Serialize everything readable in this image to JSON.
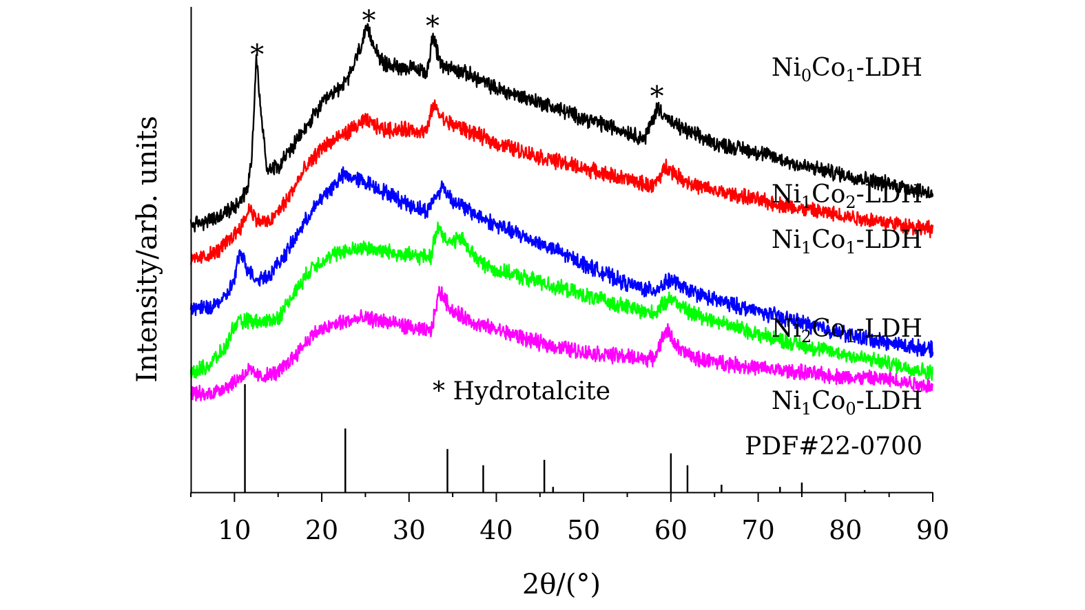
{
  "chart_data": {
    "type": "line",
    "xlabel": "2θ/(°)",
    "ylabel": "Intensity/arb. units",
    "xlim": [
      5,
      90
    ],
    "x_ticks": [
      10,
      20,
      30,
      40,
      50,
      60,
      70,
      80,
      90
    ],
    "y_ticks_shown": false,
    "grid": false,
    "legend": "none (series labels printed at right end of each trace)",
    "annotation": "* Hydrotalcite",
    "peak_marker": "*",
    "series": [
      {
        "name": "Ni0Co1-LDH",
        "name_parts": [
          [
            "Ni",
            ""
          ],
          [
            "0",
            "sub"
          ],
          [
            "Co",
            ""
          ],
          [
            "1",
            "sub"
          ],
          [
            "-LDH",
            ""
          ]
        ],
        "color": "#000000",
        "points": [
          [
            5,
            0.74
          ],
          [
            8,
            0.77
          ],
          [
            10,
            0.82
          ],
          [
            11.5,
            0.9
          ],
          [
            12,
            1.05
          ],
          [
            12.5,
            1.48
          ],
          [
            13,
            1.25
          ],
          [
            13.7,
            0.99
          ],
          [
            15,
            1.0
          ],
          [
            17,
            1.1
          ],
          [
            20,
            1.27
          ],
          [
            23,
            1.38
          ],
          [
            25.2,
            1.6
          ],
          [
            27,
            1.45
          ],
          [
            30,
            1.43
          ],
          [
            32,
            1.41
          ],
          [
            32.8,
            1.58
          ],
          [
            33.5,
            1.45
          ],
          [
            37,
            1.4
          ],
          [
            40,
            1.34
          ],
          [
            45,
            1.28
          ],
          [
            50,
            1.21
          ],
          [
            55,
            1.15
          ],
          [
            57,
            1.12
          ],
          [
            58.5,
            1.26
          ],
          [
            60,
            1.19
          ],
          [
            62,
            1.15
          ],
          [
            65,
            1.1
          ],
          [
            70,
            1.06
          ],
          [
            75,
            1.0
          ],
          [
            80,
            0.96
          ],
          [
            85,
            0.92
          ],
          [
            90,
            0.88
          ]
        ],
        "peak_stars_at_x": [
          12.6,
          25.4,
          32.7,
          58.4
        ]
      },
      {
        "name": "Ni1Co2-LDH",
        "name_parts": [
          [
            "Ni",
            ""
          ],
          [
            "1",
            "sub"
          ],
          [
            "Co",
            ""
          ],
          [
            "2",
            "sub"
          ],
          [
            "-LDH",
            ""
          ]
        ],
        "color": "#ff0000",
        "points": [
          [
            5,
            0.58
          ],
          [
            8,
            0.62
          ],
          [
            10,
            0.7
          ],
          [
            11,
            0.75
          ],
          [
            11.8,
            0.82
          ],
          [
            12.5,
            0.76
          ],
          [
            14,
            0.75
          ],
          [
            16,
            0.85
          ],
          [
            18,
            0.98
          ],
          [
            20,
            1.08
          ],
          [
            23,
            1.15
          ],
          [
            25,
            1.2
          ],
          [
            27,
            1.16
          ],
          [
            30,
            1.16
          ],
          [
            32,
            1.15
          ],
          [
            32.8,
            1.27
          ],
          [
            34,
            1.2
          ],
          [
            37,
            1.15
          ],
          [
            40,
            1.1
          ],
          [
            45,
            1.04
          ],
          [
            50,
            0.99
          ],
          [
            55,
            0.94
          ],
          [
            58,
            0.91
          ],
          [
            59.5,
            1.0
          ],
          [
            61,
            0.95
          ],
          [
            63,
            0.91
          ],
          [
            65,
            0.89
          ],
          [
            70,
            0.85
          ],
          [
            75,
            0.81
          ],
          [
            80,
            0.78
          ],
          [
            85,
            0.75
          ],
          [
            90,
            0.72
          ]
        ]
      },
      {
        "name": "Ni1Co1-LDH",
        "name_parts": [
          [
            "Ni",
            ""
          ],
          [
            "1",
            "sub"
          ],
          [
            "Co",
            ""
          ],
          [
            "1",
            "sub"
          ],
          [
            "-LDH",
            ""
          ]
        ],
        "color": "#0000ff",
        "points": [
          [
            5,
            0.38
          ],
          [
            7,
            0.37
          ],
          [
            9,
            0.42
          ],
          [
            10,
            0.5
          ],
          [
            10.6,
            0.62
          ],
          [
            11.5,
            0.55
          ],
          [
            12.5,
            0.5
          ],
          [
            14,
            0.52
          ],
          [
            16,
            0.62
          ],
          [
            18,
            0.75
          ],
          [
            20,
            0.86
          ],
          [
            22.5,
            0.96
          ],
          [
            25,
            0.93
          ],
          [
            28,
            0.87
          ],
          [
            30,
            0.83
          ],
          [
            32,
            0.8
          ],
          [
            33.8,
            0.91
          ],
          [
            35,
            0.85
          ],
          [
            37,
            0.8
          ],
          [
            40,
            0.74
          ],
          [
            45,
            0.66
          ],
          [
            50,
            0.57
          ],
          [
            55,
            0.48
          ],
          [
            58,
            0.45
          ],
          [
            60,
            0.5
          ],
          [
            61.5,
            0.46
          ],
          [
            65,
            0.41
          ],
          [
            70,
            0.36
          ],
          [
            75,
            0.31
          ],
          [
            80,
            0.26
          ],
          [
            85,
            0.22
          ],
          [
            90,
            0.19
          ]
        ]
      },
      {
        "name": "Ni2Co1-LDH",
        "name_parts": [
          [
            "Ni",
            ""
          ],
          [
            "2",
            "sub"
          ],
          [
            "Co",
            ""
          ],
          [
            "1",
            "sub"
          ],
          [
            "-LDH",
            ""
          ]
        ],
        "color": "#00ff00",
        "points": [
          [
            5,
            0.09
          ],
          [
            7,
            0.12
          ],
          [
            9,
            0.2
          ],
          [
            10,
            0.3
          ],
          [
            11.5,
            0.32
          ],
          [
            13,
            0.31
          ],
          [
            15,
            0.33
          ],
          [
            17,
            0.45
          ],
          [
            19,
            0.56
          ],
          [
            22,
            0.62
          ],
          [
            25,
            0.64
          ],
          [
            28,
            0.62
          ],
          [
            31,
            0.6
          ],
          [
            32.5,
            0.6
          ],
          [
            33.3,
            0.74
          ],
          [
            34.5,
            0.66
          ],
          [
            36,
            0.68
          ],
          [
            38,
            0.58
          ],
          [
            40,
            0.54
          ],
          [
            45,
            0.49
          ],
          [
            50,
            0.43
          ],
          [
            55,
            0.38
          ],
          [
            58,
            0.35
          ],
          [
            60,
            0.42
          ],
          [
            62,
            0.36
          ],
          [
            65,
            0.32
          ],
          [
            70,
            0.26
          ],
          [
            75,
            0.21
          ],
          [
            80,
            0.17
          ],
          [
            85,
            0.13
          ],
          [
            90,
            0.09
          ]
        ]
      },
      {
        "name": "Ni1Co0-LDH",
        "name_parts": [
          [
            "Ni",
            ""
          ],
          [
            "1",
            "sub"
          ],
          [
            "Co",
            ""
          ],
          [
            "0",
            "sub"
          ],
          [
            "-LDH",
            ""
          ]
        ],
        "color": "#ff00ff",
        "points": [
          [
            5,
            0.01
          ],
          [
            6.5,
            -0.01
          ],
          [
            8,
            0.01
          ],
          [
            10,
            0.05
          ],
          [
            11.6,
            0.1
          ],
          [
            13,
            0.07
          ],
          [
            15,
            0.09
          ],
          [
            17,
            0.17
          ],
          [
            19,
            0.26
          ],
          [
            22,
            0.31
          ],
          [
            25,
            0.33
          ],
          [
            28,
            0.31
          ],
          [
            31,
            0.28
          ],
          [
            32.5,
            0.27
          ],
          [
            33.5,
            0.45
          ],
          [
            35,
            0.36
          ],
          [
            38,
            0.3
          ],
          [
            40,
            0.28
          ],
          [
            45,
            0.22
          ],
          [
            50,
            0.18
          ],
          [
            55,
            0.16
          ],
          [
            58,
            0.15
          ],
          [
            59.5,
            0.28
          ],
          [
            61,
            0.19
          ],
          [
            63,
            0.15
          ],
          [
            65,
            0.14
          ],
          [
            70,
            0.11
          ],
          [
            75,
            0.09
          ],
          [
            80,
            0.07
          ],
          [
            85,
            0.06
          ],
          [
            90,
            0.03
          ]
        ]
      }
    ],
    "reference_pattern": {
      "name": "PDF#22-0700",
      "color": "#000000",
      "bars": [
        {
          "x": 11.2,
          "intensity": 100
        },
        {
          "x": 22.7,
          "intensity": 59
        },
        {
          "x": 34.4,
          "intensity": 40
        },
        {
          "x": 38.5,
          "intensity": 25
        },
        {
          "x": 45.5,
          "intensity": 30
        },
        {
          "x": 46.5,
          "intensity": 5
        },
        {
          "x": 60.0,
          "intensity": 36
        },
        {
          "x": 61.9,
          "intensity": 25
        },
        {
          "x": 65.8,
          "intensity": 7
        },
        {
          "x": 72.5,
          "intensity": 5
        },
        {
          "x": 75.0,
          "intensity": 9
        },
        {
          "x": 82.2,
          "intensity": 2
        }
      ]
    }
  }
}
